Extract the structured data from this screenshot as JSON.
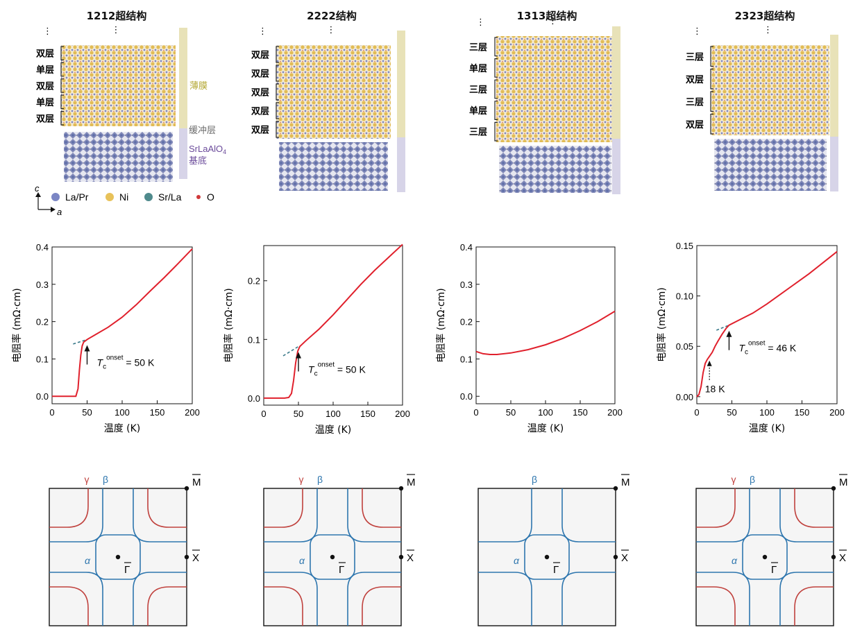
{
  "columns": [
    {
      "title": "1212超结构",
      "layers": [
        "双层",
        "单层",
        "双层",
        "单层",
        "双层"
      ],
      "side_labels": [
        "薄膜",
        "缓冲层",
        "SrLaAlO4 基底"
      ],
      "has_legend": true
    },
    {
      "title": "2222结构",
      "layers": [
        "双层",
        "双层",
        "双层",
        "双层",
        "双层"
      ],
      "side_labels": []
    },
    {
      "title": "1313超结构",
      "layers": [
        "三层",
        "单层",
        "三层",
        "单层",
        "三层"
      ],
      "side_labels": []
    },
    {
      "title": "2323超结构",
      "layers": [
        "三层",
        "双层",
        "三层",
        "双层"
      ],
      "side_labels": []
    }
  ],
  "side_labels": {
    "film": "薄膜",
    "buffer": "缓冲层",
    "substrate_formula": "SrLaAlO",
    "substrate_sub": "4",
    "substrate": "基底"
  },
  "legend": {
    "items": [
      {
        "label": "La/Pr",
        "color": "#7b86c4"
      },
      {
        "label": "Ni",
        "color": "#e8c25a"
      },
      {
        "label": "Sr/La",
        "color": "#4f8a8c"
      },
      {
        "label": "O",
        "color": "#d0393a"
      }
    ],
    "axis_c": "c",
    "axis_a": "a",
    "ellipsis": "⋮"
  },
  "colors": {
    "film_bar": "#e8e2b8",
    "substrate_bar": "#d7d4e8",
    "film_text": "#b4a834",
    "buffer_text": "#6b6b6b",
    "substrate_text": "#6a4a9a",
    "curve": "#e0202c",
    "dashed": "#3a7a8a",
    "gamma": "#c0413d",
    "beta": "#2e76ae",
    "bz_fill": "#f5f5f5"
  },
  "chart_data": [
    {
      "type": "line",
      "xlabel": "温度 (K)",
      "ylabel": "电阻率 (mΩ·cm)",
      "xlim": [
        0,
        200
      ],
      "ylim": [
        -0.02,
        0.4
      ],
      "xticks": [
        0,
        50,
        100,
        150,
        200
      ],
      "yticks": [
        0.0,
        0.1,
        0.2,
        0.3,
        0.4
      ],
      "ytick_labels": [
        "0.0",
        "0.1",
        "0.2",
        "0.3",
        "0.4"
      ],
      "x": [
        0,
        30,
        34,
        37,
        39,
        41,
        43,
        45,
        50,
        60,
        80,
        100,
        120,
        140,
        160,
        180,
        200
      ],
      "y": [
        0.0,
        0.0,
        0.0,
        0.02,
        0.07,
        0.11,
        0.135,
        0.145,
        0.152,
        0.163,
        0.185,
        0.212,
        0.245,
        0.282,
        0.318,
        0.356,
        0.395
      ],
      "annotation": {
        "T": "T",
        "sub": "c",
        "sup": "onset",
        "text": " = 50 K",
        "x": 50
      },
      "fit_line": [
        [
          30,
          0.14
        ],
        [
          50,
          0.152
        ]
      ]
    },
    {
      "type": "line",
      "xlabel": "温度 (K)",
      "ylabel": "电阻率 (mΩ·cm)",
      "xlim": [
        0,
        200
      ],
      "ylim": [
        -0.012,
        0.26
      ],
      "xticks": [
        0,
        50,
        100,
        150,
        200
      ],
      "yticks": [
        0.0,
        0.1,
        0.2
      ],
      "ytick_labels": [
        "0.0",
        "0.1",
        "0.2"
      ],
      "x": [
        0,
        30,
        36,
        40,
        43,
        46,
        49,
        52,
        60,
        80,
        100,
        120,
        140,
        160,
        180,
        200
      ],
      "y": [
        0.0,
        0.0,
        0.001,
        0.008,
        0.03,
        0.06,
        0.08,
        0.088,
        0.097,
        0.118,
        0.142,
        0.168,
        0.194,
        0.218,
        0.24,
        0.262
      ],
      "annotation": {
        "T": "T",
        "sub": "c",
        "sup": "onset",
        "text": " = 50 K",
        "x": 50
      },
      "fit_line": [
        [
          28,
          0.072
        ],
        [
          50,
          0.088
        ]
      ]
    },
    {
      "type": "line",
      "xlabel": "温度 (K)",
      "ylabel": "电阻率 (mΩ·cm)",
      "xlim": [
        0,
        200
      ],
      "ylim": [
        -0.02,
        0.4
      ],
      "xticks": [
        0,
        50,
        100,
        150,
        200
      ],
      "yticks": [
        0.0,
        0.1,
        0.2,
        0.3,
        0.4
      ],
      "ytick_labels": [
        "0.0",
        "0.1",
        "0.2",
        "0.3",
        "0.4"
      ],
      "x": [
        0,
        10,
        20,
        30,
        50,
        75,
        100,
        125,
        150,
        175,
        200
      ],
      "y": [
        0.12,
        0.114,
        0.112,
        0.112,
        0.116,
        0.125,
        0.138,
        0.155,
        0.176,
        0.2,
        0.228
      ]
    },
    {
      "type": "line",
      "xlabel": "温度 (K)",
      "ylabel": "电阻率 (mΩ·cm)",
      "xlim": [
        0,
        200
      ],
      "ylim": [
        -0.007,
        0.15
      ],
      "xticks": [
        0,
        50,
        100,
        150,
        200
      ],
      "yticks": [
        0.0,
        0.05,
        0.1,
        0.15
      ],
      "ytick_labels": [
        "0.00",
        "0.05",
        "0.10",
        "0.15"
      ],
      "x": [
        0,
        3,
        6,
        9,
        12,
        15,
        18,
        22,
        26,
        30,
        36,
        42,
        46,
        60,
        80,
        100,
        120,
        140,
        160,
        180,
        200
      ],
      "y": [
        0.0,
        0.002,
        0.01,
        0.024,
        0.033,
        0.037,
        0.04,
        0.044,
        0.05,
        0.055,
        0.062,
        0.068,
        0.071,
        0.076,
        0.083,
        0.092,
        0.102,
        0.112,
        0.122,
        0.133,
        0.144
      ],
      "annotation": {
        "T": "T",
        "sub": "c",
        "sup": "onset",
        "text": " = 46 K",
        "x": 46
      },
      "annotation2": {
        "text": "18 K",
        "x": 18
      },
      "fit_line": [
        [
          28,
          0.066
        ],
        [
          46,
          0.071
        ]
      ]
    }
  ],
  "fermi_surfaces": [
    {
      "gamma": "γ",
      "beta": "β",
      "alpha": "α",
      "M": "M",
      "X": "X",
      "Gamma": "Γ",
      "show_gamma": true
    },
    {
      "gamma": "γ",
      "beta": "β",
      "alpha": "α",
      "M": "M",
      "X": "X",
      "Gamma": "Γ",
      "show_gamma": true
    },
    {
      "gamma": "",
      "beta": "β",
      "alpha": "α",
      "M": "M",
      "X": "X",
      "Gamma": "Γ",
      "show_gamma": false
    },
    {
      "gamma": "γ",
      "beta": "β",
      "alpha": "α",
      "M": "M",
      "X": "X",
      "Gamma": "Γ",
      "show_gamma": true
    }
  ]
}
